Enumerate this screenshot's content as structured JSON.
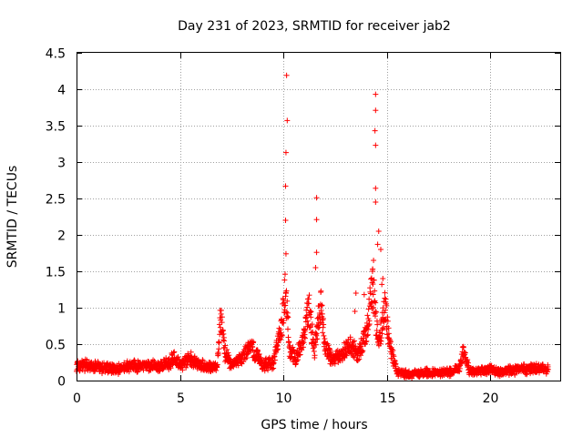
{
  "chart_data": {
    "type": "scatter",
    "title": "Day 231 of 2023, SRMTID for receiver jab2",
    "xlabel": "GPS time / hours",
    "ylabel": "SRMTID / TECUs",
    "xlim": [
      0,
      23.37
    ],
    "ylim": [
      0,
      4.5
    ],
    "xticks": [
      0,
      5,
      10,
      15,
      20
    ],
    "xtick_labels": [
      "0",
      "5",
      "10",
      "15",
      "20"
    ],
    "yticks": [
      0,
      0.5,
      1,
      1.5,
      2,
      2.5,
      3,
      3.5,
      4,
      4.5
    ],
    "ytick_labels": [
      "0",
      "0.5",
      "1",
      "1.5",
      "2",
      "2.5",
      "3",
      "3.5",
      "4",
      "4.5"
    ],
    "grid": true,
    "marker": "+",
    "series": [
      {
        "name": "jab2",
        "color": "#ff0000",
        "baseline": [
          [
            0.0,
            0.18
          ],
          [
            0.5,
            0.22
          ],
          [
            1.0,
            0.18
          ],
          [
            1.5,
            0.17
          ],
          [
            2.0,
            0.15
          ],
          [
            2.5,
            0.2
          ],
          [
            3.0,
            0.2
          ],
          [
            3.5,
            0.2
          ],
          [
            4.0,
            0.2
          ],
          [
            4.5,
            0.25
          ],
          [
            4.7,
            0.32
          ],
          [
            5.0,
            0.22
          ],
          [
            5.5,
            0.3
          ],
          [
            6.0,
            0.22
          ],
          [
            6.5,
            0.18
          ],
          [
            6.8,
            0.2
          ],
          [
            6.95,
            0.85
          ],
          [
            7.2,
            0.35
          ],
          [
            7.5,
            0.22
          ],
          [
            8.0,
            0.3
          ],
          [
            8.4,
            0.5
          ],
          [
            8.7,
            0.35
          ],
          [
            9.0,
            0.22
          ],
          [
            9.5,
            0.25
          ],
          [
            9.8,
            0.6
          ],
          [
            10.0,
            1.0
          ],
          [
            10.1,
            1.3
          ],
          [
            10.3,
            0.4
          ],
          [
            10.6,
            0.3
          ],
          [
            10.9,
            0.55
          ],
          [
            11.2,
            1.0
          ],
          [
            11.5,
            0.4
          ],
          [
            11.8,
            1.05
          ],
          [
            12.0,
            0.5
          ],
          [
            12.3,
            0.3
          ],
          [
            12.8,
            0.35
          ],
          [
            13.2,
            0.5
          ],
          [
            13.6,
            0.35
          ],
          [
            14.0,
            0.6
          ],
          [
            14.3,
            1.3
          ],
          [
            14.6,
            0.5
          ],
          [
            14.9,
            1.0
          ],
          [
            15.2,
            0.4
          ],
          [
            15.5,
            0.12
          ],
          [
            16.0,
            0.08
          ],
          [
            16.5,
            0.1
          ],
          [
            17.0,
            0.12
          ],
          [
            17.5,
            0.1
          ],
          [
            18.0,
            0.12
          ],
          [
            18.5,
            0.15
          ],
          [
            18.7,
            0.4
          ],
          [
            19.0,
            0.12
          ],
          [
            19.5,
            0.13
          ],
          [
            20.0,
            0.15
          ],
          [
            20.5,
            0.12
          ],
          [
            21.0,
            0.15
          ],
          [
            21.5,
            0.15
          ],
          [
            22.0,
            0.16
          ],
          [
            22.8,
            0.15
          ]
        ],
        "spikes": [
          [
            10.15,
            4.19
          ],
          [
            10.18,
            3.57
          ],
          [
            10.12,
            3.13
          ],
          [
            10.1,
            2.67
          ],
          [
            10.1,
            2.2
          ],
          [
            10.12,
            1.74
          ],
          [
            10.05,
            1.38
          ],
          [
            11.6,
            2.51
          ],
          [
            11.6,
            2.21
          ],
          [
            11.6,
            1.76
          ],
          [
            11.55,
            1.55
          ],
          [
            14.45,
            3.93
          ],
          [
            14.45,
            3.71
          ],
          [
            14.42,
            3.43
          ],
          [
            14.45,
            3.23
          ],
          [
            14.45,
            2.64
          ],
          [
            14.45,
            2.45
          ],
          [
            14.6,
            2.05
          ],
          [
            14.55,
            1.87
          ],
          [
            14.7,
            1.8
          ],
          [
            14.35,
            1.65
          ],
          [
            14.3,
            1.5
          ],
          [
            14.8,
            1.4
          ],
          [
            14.75,
            1.32
          ],
          [
            13.5,
            1.2
          ],
          [
            13.45,
            0.95
          ],
          [
            13.9,
            1.18
          ]
        ]
      }
    ]
  }
}
